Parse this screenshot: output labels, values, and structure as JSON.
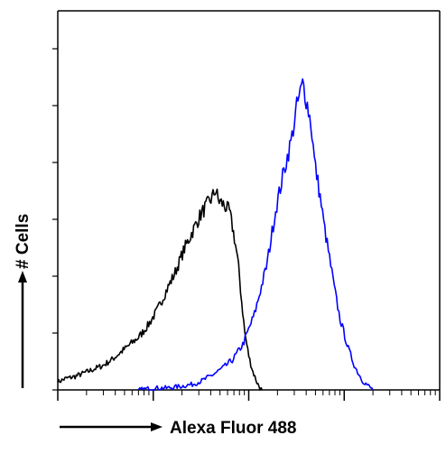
{
  "chart_data": {
    "type": "line",
    "xlabel": "Alexa Fluor 488",
    "ylabel": "# Cells",
    "x_scale": "log",
    "xlim": [
      1,
      10000
    ],
    "ylim": [
      0,
      100
    ],
    "x_decades": [
      1,
      10,
      100,
      1000,
      10000
    ],
    "y_ticks": [
      0,
      15,
      30,
      45,
      60,
      75,
      90
    ],
    "grid": false,
    "legend": "none",
    "colors": {
      "control": "#000000",
      "stained": "#0000ff",
      "axis": "#000000"
    },
    "series": [
      {
        "color": "#000000",
        "x": [
          1.0,
          1.2,
          1.5,
          1.9,
          2.4,
          3.0,
          3.7,
          4.6,
          5.7,
          7.1,
          8.8,
          11,
          13.6,
          17,
          21,
          26,
          31,
          37,
          42,
          45,
          48,
          54,
          63,
          71,
          76,
          80,
          83,
          87,
          91,
          100,
          110,
          122,
          131,
          138
        ],
        "y": [
          2,
          3,
          3.5,
          4.5,
          5.5,
          6.5,
          8,
          10,
          12,
          14,
          17,
          21,
          26,
          31,
          37,
          42,
          46,
          49,
          51,
          53,
          50,
          49,
          47,
          40,
          35,
          30,
          25,
          20,
          15,
          9,
          5,
          2,
          0.5,
          0
        ]
      },
      {
        "color": "#0000ff",
        "x": [
          7,
          10,
          14,
          20,
          26,
          33,
          42,
          55,
          68,
          87,
          115,
          155,
          190,
          230,
          280,
          320,
          370,
          405,
          450,
          490,
          560,
          620,
          700,
          800,
          900,
          1100,
          1300,
          1550,
          1800,
          2000
        ],
        "y": [
          0,
          0.5,
          0.5,
          1,
          1.5,
          2.5,
          4,
          6,
          8,
          12,
          20,
          33,
          47,
          57,
          66,
          75,
          81,
          76,
          70,
          60,
          51,
          43,
          35,
          26,
          19,
          11,
          6,
          2.5,
          1,
          0
        ]
      }
    ]
  }
}
